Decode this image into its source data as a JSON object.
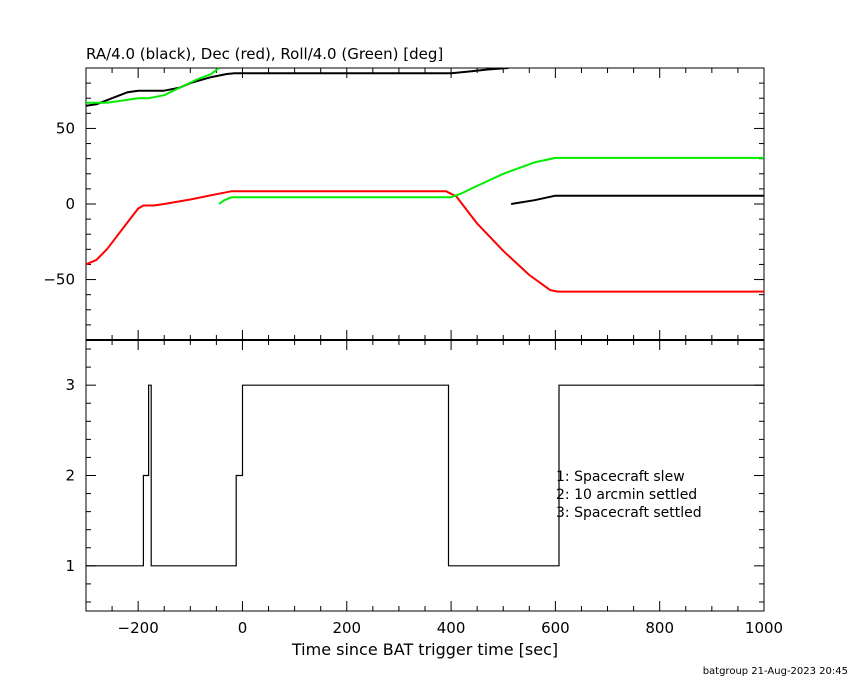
{
  "footer": "batgroup 21-Aug-2023 20:45",
  "colors": {
    "ra": "#000000",
    "dec": "#ff0000",
    "roll": "#00ee00",
    "axes": "#000000"
  },
  "chart_data": [
    {
      "type": "line",
      "title": "RA/4.0 (black), Dec (red), Roll/4.0 (Green) [deg]",
      "xlim": [
        -300,
        1000
      ],
      "ylim": [
        -90,
        90
      ],
      "yticks": [
        -50,
        0,
        50
      ],
      "ytick_labels": [
        "−50",
        "0",
        "50"
      ],
      "grid": false,
      "series": [
        {
          "name": "RA/4.0",
          "color": "#000000",
          "segments": [
            {
              "x": [
                -300,
                -280,
                -250,
                -220,
                -200,
                -150,
                -120,
                -100,
                -60,
                -30,
                -15,
                0,
                50,
                150,
                250,
                350,
                400
              ],
              "y": [
                65,
                66,
                70,
                74,
                75,
                75,
                77,
                80,
                84,
                86,
                86.5,
                86.5,
                86.5,
                86.5,
                86.5,
                86.5,
                86.5
              ]
            },
            {
              "x": [
                400,
                430,
                470,
                510
              ],
              "y": [
                86.5,
                87.5,
                89,
                90
              ]
            },
            {
              "x": [
                515,
                560,
                600,
                650,
                750,
                850,
                1000
              ],
              "y": [
                0,
                2.5,
                5.5,
                5.5,
                5.5,
                5.5,
                5.5
              ]
            }
          ]
        },
        {
          "name": "Dec",
          "color": "#ff0000",
          "segments": [
            {
              "x": [
                -300,
                -280,
                -260,
                -240,
                -220,
                -200,
                -190,
                -170,
                -150,
                -100,
                -50,
                -20,
                0,
                100,
                200,
                300,
                390,
                410,
                450,
                500,
                550,
                590,
                605,
                620,
                700,
                800,
                1000
              ],
              "y": [
                -40,
                -37,
                -30,
                -21,
                -12,
                -3,
                -1,
                -1,
                0,
                3,
                6.5,
                8.5,
                8.5,
                8.5,
                8.5,
                8.5,
                8.5,
                5,
                -13,
                -31,
                -47,
                -57,
                -58,
                -58,
                -58,
                -58,
                -58
              ]
            }
          ]
        },
        {
          "name": "Roll/4.0",
          "color": "#00ee00",
          "segments": [
            {
              "x": [
                -300,
                -260,
                -200,
                -180,
                -150,
                -120,
                -90,
                -60,
                -45
              ],
              "y": [
                67,
                67,
                70,
                70,
                72,
                77,
                82,
                86,
                90
              ]
            },
            {
              "x": [
                -45,
                -35,
                -20,
                0,
                100,
                200,
                300,
                400,
                420,
                450,
                500,
                560,
                600,
                620,
                700,
                800,
                1000
              ],
              "y": [
                0,
                2.5,
                4.5,
                4.5,
                4.5,
                4.5,
                4.5,
                4.5,
                7,
                12,
                20,
                27.5,
                30.5,
                30.5,
                30.5,
                30.5,
                30.5
              ]
            }
          ]
        }
      ]
    },
    {
      "type": "line",
      "xlabel": "Time since BAT trigger time [sec]",
      "xlim": [
        -300,
        1000
      ],
      "ylim": [
        0.5,
        3.5
      ],
      "xticks": [
        -200,
        0,
        200,
        400,
        600,
        800,
        1000
      ],
      "xtick_labels": [
        "−200",
        "0",
        "200",
        "400",
        "600",
        "800",
        "1000"
      ],
      "yticks": [
        1,
        2,
        3
      ],
      "ytick_labels": [
        "1",
        "2",
        "3"
      ],
      "grid": false,
      "legend": [
        "1: Spacecraft slew",
        "2: 10 arcmin settled",
        "3: Spacecraft settled"
      ],
      "series": [
        {
          "color": "#000000",
          "step": true,
          "x": [
            -300,
            -190,
            -180,
            -175,
            -12,
            0,
            395,
            607,
            1000
          ],
          "y": [
            1,
            2,
            3,
            1,
            2,
            3,
            1,
            3,
            3
          ]
        }
      ]
    }
  ]
}
